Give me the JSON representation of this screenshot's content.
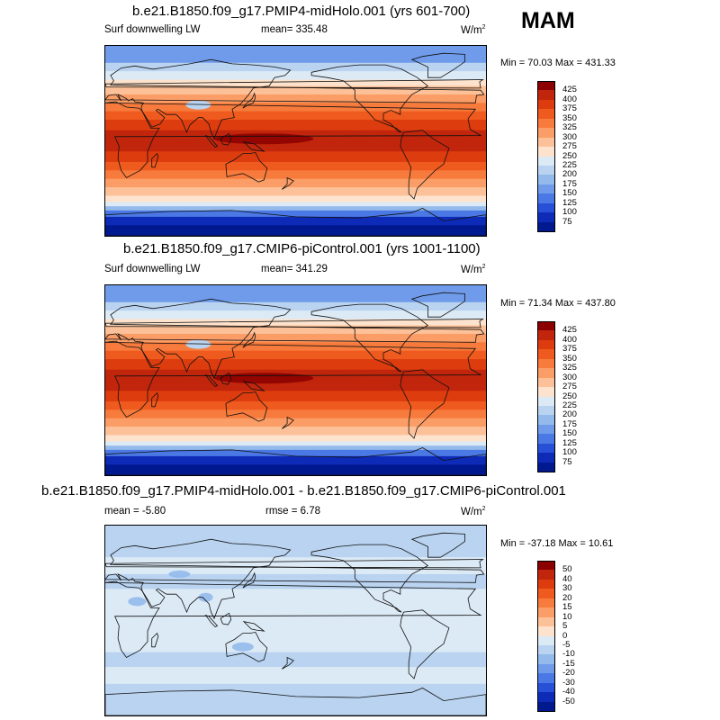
{
  "season": "MAM",
  "panels": [
    {
      "title": "b.e21.B1850.f09_g17.PMIP4-midHolo.001 (yrs 601-700)",
      "left_label": "Surf downwelling LW",
      "stat1": "mean= 335.48",
      "stat2": "",
      "units": "W/m",
      "units_exp": "2",
      "minmax": "Min =  70.03 Max = 431.33",
      "colorbar": {
        "labels": [
          "425",
          "400",
          "375",
          "350",
          "325",
          "300",
          "275",
          "250",
          "225",
          "200",
          "175",
          "150",
          "125",
          "100",
          "75"
        ],
        "colors": [
          "#8b0000",
          "#c1260d",
          "#dd3c0e",
          "#ef5a1e",
          "#f77b3c",
          "#fb9d66",
          "#fcc198",
          "#fde3cd",
          "#dceaf6",
          "#b9d3f0",
          "#94baeb",
          "#6f9bea",
          "#4a78e4",
          "#2750d6",
          "#0e2bb8",
          "#00198f"
        ]
      },
      "field": "absolute"
    },
    {
      "title": "b.e21.B1850.f09_g17.CMIP6-piControl.001 (yrs 1001-1100)",
      "left_label": "Surf downwelling LW",
      "stat1": "mean= 341.29",
      "stat2": "",
      "units": "W/m",
      "units_exp": "2",
      "minmax": "Min =  71.34 Max = 437.80",
      "colorbar": {
        "labels": [
          "425",
          "400",
          "375",
          "350",
          "325",
          "300",
          "275",
          "250",
          "225",
          "200",
          "175",
          "150",
          "125",
          "100",
          "75"
        ],
        "colors": [
          "#8b0000",
          "#c1260d",
          "#dd3c0e",
          "#ef5a1e",
          "#f77b3c",
          "#fb9d66",
          "#fcc198",
          "#fde3cd",
          "#dceaf6",
          "#b9d3f0",
          "#94baeb",
          "#6f9bea",
          "#4a78e4",
          "#2750d6",
          "#0e2bb8",
          "#00198f"
        ]
      },
      "field": "absolute"
    },
    {
      "title": "b.e21.B1850.f09_g17.PMIP4-midHolo.001 - b.e21.B1850.f09_g17.CMIP6-piControl.001",
      "left_label": "mean =  -5.80",
      "stat1": "",
      "stat2": "rmse =  6.78",
      "units": "W/m",
      "units_exp": "2",
      "minmax": "Min = -37.18 Max =  10.61",
      "colorbar": {
        "labels": [
          "50",
          "40",
          "30",
          "20",
          "15",
          "10",
          "5",
          "0",
          "-5",
          "-10",
          "-15",
          "-20",
          "-30",
          "-40",
          "-50"
        ],
        "colors": [
          "#8b0000",
          "#c1260d",
          "#dd3c0e",
          "#ef5a1e",
          "#f77b3c",
          "#fb9d66",
          "#fcc198",
          "#fde3cd",
          "#dceaf6",
          "#b9d3f0",
          "#94baeb",
          "#6f9bea",
          "#4a78e4",
          "#2750d6",
          "#0e2bb8",
          "#00198f"
        ]
      },
      "field": "difference"
    }
  ]
}
